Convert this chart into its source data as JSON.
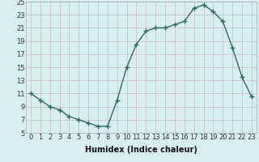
{
  "xlabel": "Humidex (Indice chaleur)",
  "x": [
    0,
    1,
    2,
    3,
    4,
    5,
    6,
    7,
    8,
    9,
    10,
    11,
    12,
    13,
    14,
    15,
    16,
    17,
    18,
    19,
    20,
    21,
    22,
    23
  ],
  "y": [
    11,
    10,
    9,
    8.5,
    7.5,
    7,
    6.5,
    6,
    6,
    10,
    15,
    18.5,
    20.5,
    21,
    21,
    21.5,
    22,
    24,
    24.5,
    23.5,
    22,
    18,
    13.5,
    10.5
  ],
  "line_color": "#2e6b5e",
  "marker_color": "#2e6b5e",
  "bg_color": "#d6f0f0",
  "grid_color": "#c8b8b8",
  "tick_color": "#333333",
  "ylim": [
    5,
    25
  ],
  "yticks": [
    5,
    7,
    9,
    11,
    13,
    15,
    17,
    19,
    21,
    23,
    25
  ],
  "xticks": [
    0,
    1,
    2,
    3,
    4,
    5,
    6,
    7,
    8,
    9,
    10,
    11,
    12,
    13,
    14,
    15,
    16,
    17,
    18,
    19,
    20,
    21,
    22,
    23
  ],
  "xlabel_fontsize": 7,
  "tick_fontsize": 6,
  "marker_size": 4,
  "line_width": 1.0
}
